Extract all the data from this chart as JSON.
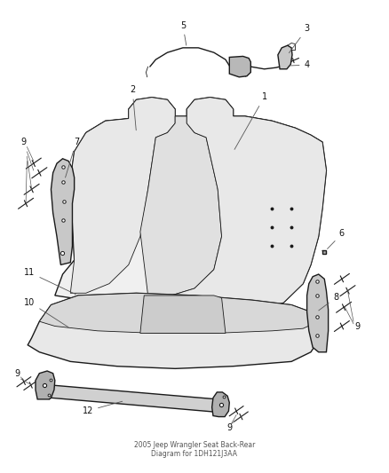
{
  "title": "2005 Jeep Wrangler Seat Back-Rear Diagram for 1DH121J3AA",
  "background_color": "#ffffff",
  "line_color": "#1a1a1a",
  "label_color": "#111111",
  "figsize": [
    4.38,
    5.33
  ],
  "dpi": 100,
  "seat_back_fill": "#f0f0f0",
  "seat_cushion_fill": "#e8e8e8",
  "bracket_fill": "#c8c8c8",
  "bar_fill": "#d0d0d0"
}
